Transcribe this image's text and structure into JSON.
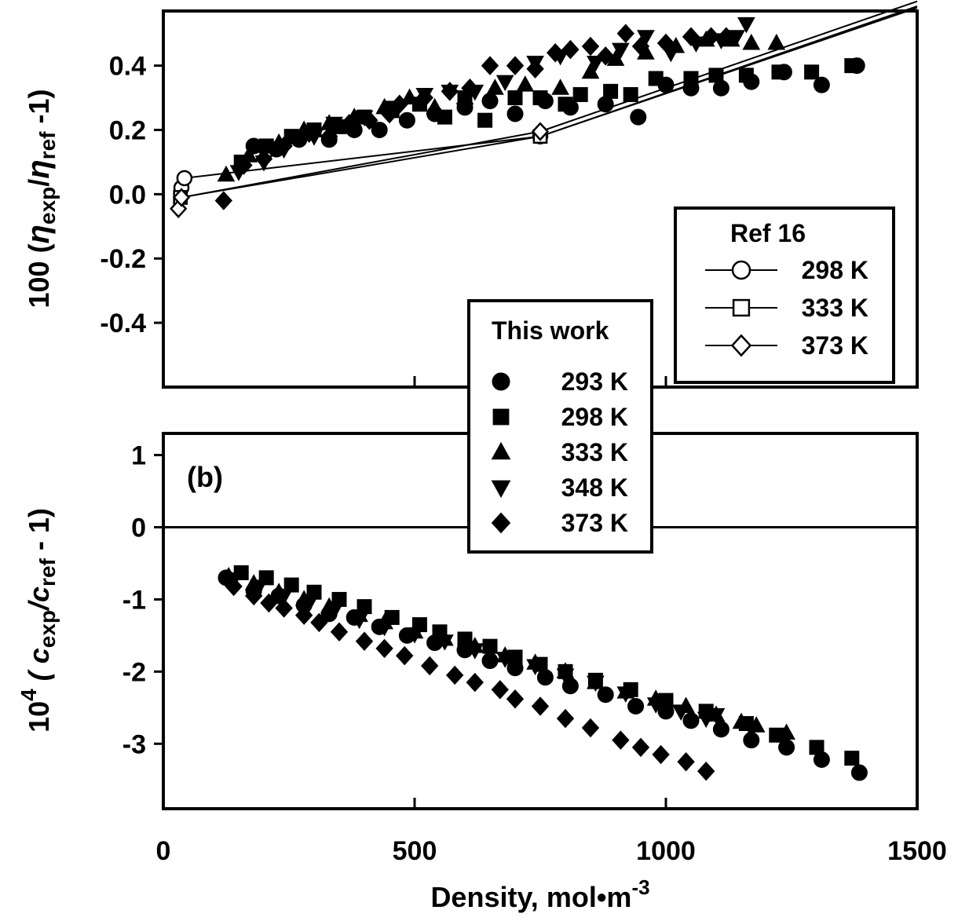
{
  "chart_data": [
    {
      "type": "scatter",
      "panel": "top",
      "ylabel": {
        "prefix": "100 (",
        "eta": "η",
        "sub1": "exp",
        "slash": "/",
        "sub2": "ref",
        "suffix": "  -1)"
      },
      "xlim": [
        0,
        1500
      ],
      "ylim": [
        -0.6,
        0.57
      ],
      "yticks": [
        -0.4,
        -0.2,
        0.0,
        0.2,
        0.4
      ],
      "ytick_labels": [
        "-0.4",
        "-0.2",
        "0.0",
        "0.2",
        "0.4"
      ],
      "xticks": [
        0,
        500,
        1000,
        1500
      ],
      "series": [
        {
          "name": "293 K",
          "marker": "circle",
          "filled": true,
          "points": [
            [
              180,
              0.15
            ],
            [
              225,
              0.14
            ],
            [
              270,
              0.17
            ],
            [
              330,
              0.17
            ],
            [
              380,
              0.2
            ],
            [
              430,
              0.2
            ],
            [
              485,
              0.23
            ],
            [
              540,
              0.25
            ],
            [
              600,
              0.27
            ],
            [
              650,
              0.29
            ],
            [
              700,
              0.25
            ],
            [
              760,
              0.29
            ],
            [
              810,
              0.27
            ],
            [
              880,
              0.28
            ],
            [
              945,
              0.24
            ],
            [
              1000,
              0.34
            ],
            [
              1050,
              0.33
            ],
            [
              1110,
              0.33
            ],
            [
              1170,
              0.35
            ],
            [
              1235,
              0.38
            ],
            [
              1310,
              0.34
            ],
            [
              1380,
              0.4
            ]
          ]
        },
        {
          "name": "298 K",
          "marker": "square",
          "filled": true,
          "points": [
            [
              155,
              0.1
            ],
            [
              205,
              0.15
            ],
            [
              255,
              0.18
            ],
            [
              300,
              0.2
            ],
            [
              350,
              0.21
            ],
            [
              400,
              0.24
            ],
            [
              455,
              0.26
            ],
            [
              510,
              0.28
            ],
            [
              560,
              0.24
            ],
            [
              600,
              0.3
            ],
            [
              640,
              0.23
            ],
            [
              700,
              0.3
            ],
            [
              750,
              0.3
            ],
            [
              800,
              0.28
            ],
            [
              830,
              0.31
            ],
            [
              890,
              0.32
            ],
            [
              930,
              0.31
            ],
            [
              980,
              0.36
            ],
            [
              1050,
              0.36
            ],
            [
              1100,
              0.37
            ],
            [
              1160,
              0.37
            ],
            [
              1225,
              0.38
            ],
            [
              1290,
              0.38
            ],
            [
              1370,
              0.4
            ]
          ]
        },
        {
          "name": "333 K",
          "marker": "triangle-up",
          "filled": true,
          "points": [
            [
              125,
              0.06
            ],
            [
              170,
              0.12
            ],
            [
              230,
              0.16
            ],
            [
              280,
              0.2
            ],
            [
              330,
              0.22
            ],
            [
              380,
              0.24
            ],
            [
              440,
              0.27
            ],
            [
              490,
              0.3
            ],
            [
              540,
              0.27
            ],
            [
              600,
              0.3
            ],
            [
              660,
              0.33
            ],
            [
              720,
              0.34
            ],
            [
              790,
              0.33
            ],
            [
              850,
              0.38
            ],
            [
              900,
              0.42
            ],
            [
              960,
              0.44
            ],
            [
              1020,
              0.46
            ],
            [
              1080,
              0.48
            ],
            [
              1130,
              0.48
            ],
            [
              1170,
              0.47
            ],
            [
              1220,
              0.47
            ]
          ]
        },
        {
          "name": "348 K",
          "marker": "triangle-down",
          "filled": true,
          "points": [
            [
              150,
              0.07
            ],
            [
              200,
              0.1
            ],
            [
              240,
              0.14
            ],
            [
              300,
              0.18
            ],
            [
              340,
              0.22
            ],
            [
              400,
              0.24
            ],
            [
              460,
              0.27
            ],
            [
              520,
              0.31
            ],
            [
              570,
              0.32
            ],
            [
              620,
              0.32
            ],
            [
              680,
              0.35
            ],
            [
              740,
              0.41
            ],
            [
              790,
              0.43
            ],
            [
              860,
              0.41
            ],
            [
              910,
              0.45
            ],
            [
              960,
              0.49
            ],
            [
              1010,
              0.44
            ],
            [
              1060,
              0.47
            ],
            [
              1110,
              0.48
            ],
            [
              1140,
              0.49
            ],
            [
              1160,
              0.53
            ]
          ]
        },
        {
          "name": "373 K",
          "marker": "diamond",
          "filled": true,
          "points": [
            [
              120,
              -0.02
            ],
            [
              160,
              0.09
            ],
            [
              200,
              0.11
            ],
            [
              240,
              0.15
            ],
            [
              290,
              0.19
            ],
            [
              330,
              0.18
            ],
            [
              370,
              0.22
            ],
            [
              410,
              0.23
            ],
            [
              450,
              0.25
            ],
            [
              470,
              0.28
            ],
            [
              520,
              0.3
            ],
            [
              570,
              0.32
            ],
            [
              610,
              0.33
            ],
            [
              650,
              0.4
            ],
            [
              700,
              0.4
            ],
            [
              740,
              0.39
            ],
            [
              780,
              0.44
            ],
            [
              810,
              0.45
            ],
            [
              850,
              0.46
            ],
            [
              880,
              0.43
            ],
            [
              920,
              0.5
            ],
            [
              950,
              0.46
            ],
            [
              1000,
              0.47
            ],
            [
              1050,
              0.49
            ],
            [
              1090,
              0.49
            ],
            [
              1120,
              0.49
            ]
          ]
        },
        {
          "name": "298 K",
          "group": "Ref 16",
          "marker": "circle",
          "filled": false,
          "line": true,
          "points": [
            [
              36,
              0.02
            ],
            [
              42,
              0.05
            ],
            [
              750,
              0.18
            ],
            [
              1500,
              0.58
            ]
          ]
        },
        {
          "name": "333 K",
          "group": "Ref 16",
          "marker": "square",
          "filled": false,
          "line": true,
          "points": [
            [
              34,
              -0.01
            ],
            [
              750,
              0.18
            ],
            [
              1500,
              0.585
            ]
          ]
        },
        {
          "name": "373 K",
          "group": "Ref 16",
          "marker": "diamond",
          "filled": false,
          "line": true,
          "points": [
            [
              30,
              -0.045
            ],
            [
              36,
              -0.01
            ],
            [
              750,
              0.195
            ],
            [
              1500,
              0.6
            ]
          ]
        }
      ]
    },
    {
      "type": "scatter",
      "panel": "bottom",
      "annotation": "(b)",
      "xlabel": "Density,  mol•m",
      "xlabel_sup": "-3",
      "ylabel": {
        "prefix": "10",
        "sup": "4",
        "mid": " ( c",
        "sub1": "exp",
        "slash": "/c",
        "sub2": "ref",
        "suffix": " - 1)"
      },
      "xlim": [
        0,
        1500
      ],
      "ylim": [
        -3.9,
        1.3
      ],
      "yticks": [
        -3,
        -2,
        -1,
        0,
        1
      ],
      "ytick_labels": [
        "-3",
        "-2",
        "-1",
        "0",
        "1"
      ],
      "xticks": [
        0,
        500,
        1000,
        1500
      ],
      "xtick_labels": [
        "0",
        "500",
        "1000",
        "1500"
      ],
      "zero_line": true,
      "series": [
        {
          "name": "293 K",
          "marker": "circle",
          "filled": true,
          "points": [
            [
              125,
              -0.7
            ],
            [
              180,
              -0.88
            ],
            [
              230,
              -0.95
            ],
            [
              280,
              -1.08
            ],
            [
              330,
              -1.2
            ],
            [
              380,
              -1.25
            ],
            [
              430,
              -1.38
            ],
            [
              485,
              -1.5
            ],
            [
              540,
              -1.6
            ],
            [
              600,
              -1.7
            ],
            [
              650,
              -1.85
            ],
            [
              700,
              -1.95
            ],
            [
              760,
              -2.08
            ],
            [
              810,
              -2.2
            ],
            [
              880,
              -2.32
            ],
            [
              940,
              -2.48
            ],
            [
              1000,
              -2.55
            ],
            [
              1050,
              -2.68
            ],
            [
              1110,
              -2.8
            ],
            [
              1170,
              -2.95
            ],
            [
              1240,
              -3.05
            ],
            [
              1310,
              -3.22
            ],
            [
              1385,
              -3.4
            ]
          ]
        },
        {
          "name": "298 K",
          "marker": "square",
          "filled": true,
          "points": [
            [
              155,
              -0.63
            ],
            [
              205,
              -0.7
            ],
            [
              255,
              -0.8
            ],
            [
              300,
              -0.9
            ],
            [
              350,
              -1.0
            ],
            [
              400,
              -1.1
            ],
            [
              455,
              -1.25
            ],
            [
              510,
              -1.35
            ],
            [
              550,
              -1.45
            ],
            [
              600,
              -1.55
            ],
            [
              650,
              -1.65
            ],
            [
              700,
              -1.8
            ],
            [
              750,
              -1.9
            ],
            [
              800,
              -2.0
            ],
            [
              860,
              -2.12
            ],
            [
              930,
              -2.25
            ],
            [
              1000,
              -2.4
            ],
            [
              1080,
              -2.55
            ],
            [
              1160,
              -2.72
            ],
            [
              1220,
              -2.88
            ],
            [
              1300,
              -3.05
            ],
            [
              1370,
              -3.2
            ]
          ]
        },
        {
          "name": "333 K",
          "marker": "triangle-up",
          "filled": true,
          "points": [
            [
              130,
              -0.68
            ],
            [
              180,
              -0.78
            ],
            [
              230,
              -0.9
            ],
            [
              280,
              -1.0
            ],
            [
              330,
              -1.1
            ],
            [
              390,
              -1.22
            ],
            [
              440,
              -1.32
            ],
            [
              500,
              -1.45
            ],
            [
              560,
              -1.55
            ],
            [
              620,
              -1.65
            ],
            [
              680,
              -1.78
            ],
            [
              740,
              -1.88
            ],
            [
              800,
              -2.0
            ],
            [
              860,
              -2.15
            ],
            [
              920,
              -2.28
            ],
            [
              980,
              -2.38
            ],
            [
              1040,
              -2.48
            ],
            [
              1100,
              -2.6
            ],
            [
              1150,
              -2.7
            ],
            [
              1180,
              -2.75
            ],
            [
              1240,
              -2.85
            ]
          ]
        },
        {
          "name": "348 K",
          "marker": "triangle-down",
          "filled": true,
          "points": [
            [
              140,
              -0.72
            ],
            [
              190,
              -0.82
            ],
            [
              240,
              -0.95
            ],
            [
              290,
              -1.05
            ],
            [
              340,
              -1.15
            ],
            [
              390,
              -1.28
            ],
            [
              440,
              -1.38
            ],
            [
              500,
              -1.48
            ],
            [
              560,
              -1.58
            ],
            [
              620,
              -1.7
            ],
            [
              680,
              -1.82
            ],
            [
              740,
              -1.92
            ],
            [
              800,
              -2.05
            ],
            [
              860,
              -2.15
            ],
            [
              920,
              -2.3
            ],
            [
              980,
              -2.45
            ],
            [
              1030,
              -2.55
            ],
            [
              1080,
              -2.65
            ],
            [
              1100,
              -2.6
            ]
          ]
        },
        {
          "name": "373 K",
          "marker": "diamond",
          "filled": true,
          "points": [
            [
              140,
              -0.82
            ],
            [
              180,
              -0.95
            ],
            [
              210,
              -1.05
            ],
            [
              240,
              -1.12
            ],
            [
              280,
              -1.22
            ],
            [
              310,
              -1.32
            ],
            [
              350,
              -1.45
            ],
            [
              400,
              -1.58
            ],
            [
              440,
              -1.68
            ],
            [
              480,
              -1.78
            ],
            [
              530,
              -1.92
            ],
            [
              580,
              -2.05
            ],
            [
              620,
              -2.15
            ],
            [
              670,
              -2.25
            ],
            [
              700,
              -2.38
            ],
            [
              750,
              -2.48
            ],
            [
              800,
              -2.65
            ],
            [
              850,
              -2.78
            ],
            [
              910,
              -2.95
            ],
            [
              950,
              -3.05
            ],
            [
              990,
              -3.15
            ],
            [
              1040,
              -3.25
            ],
            [
              1080,
              -3.38
            ]
          ]
        }
      ]
    }
  ],
  "legend_this_work": {
    "title": "This work",
    "entries": [
      {
        "label": "293 K",
        "marker": "circle"
      },
      {
        "label": "298 K",
        "marker": "square"
      },
      {
        "label": "333 K",
        "marker": "triangle-up"
      },
      {
        "label": "348 K",
        "marker": "triangle-down"
      },
      {
        "label": "373 K",
        "marker": "diamond"
      }
    ]
  },
  "legend_ref": {
    "title": "Ref 16",
    "entries": [
      {
        "label": "298 K",
        "marker": "circle"
      },
      {
        "label": "333 K",
        "marker": "square"
      },
      {
        "label": "373 K",
        "marker": "diamond"
      }
    ]
  },
  "colors": {
    "ink": "#000000",
    "background": "#ffffff"
  }
}
